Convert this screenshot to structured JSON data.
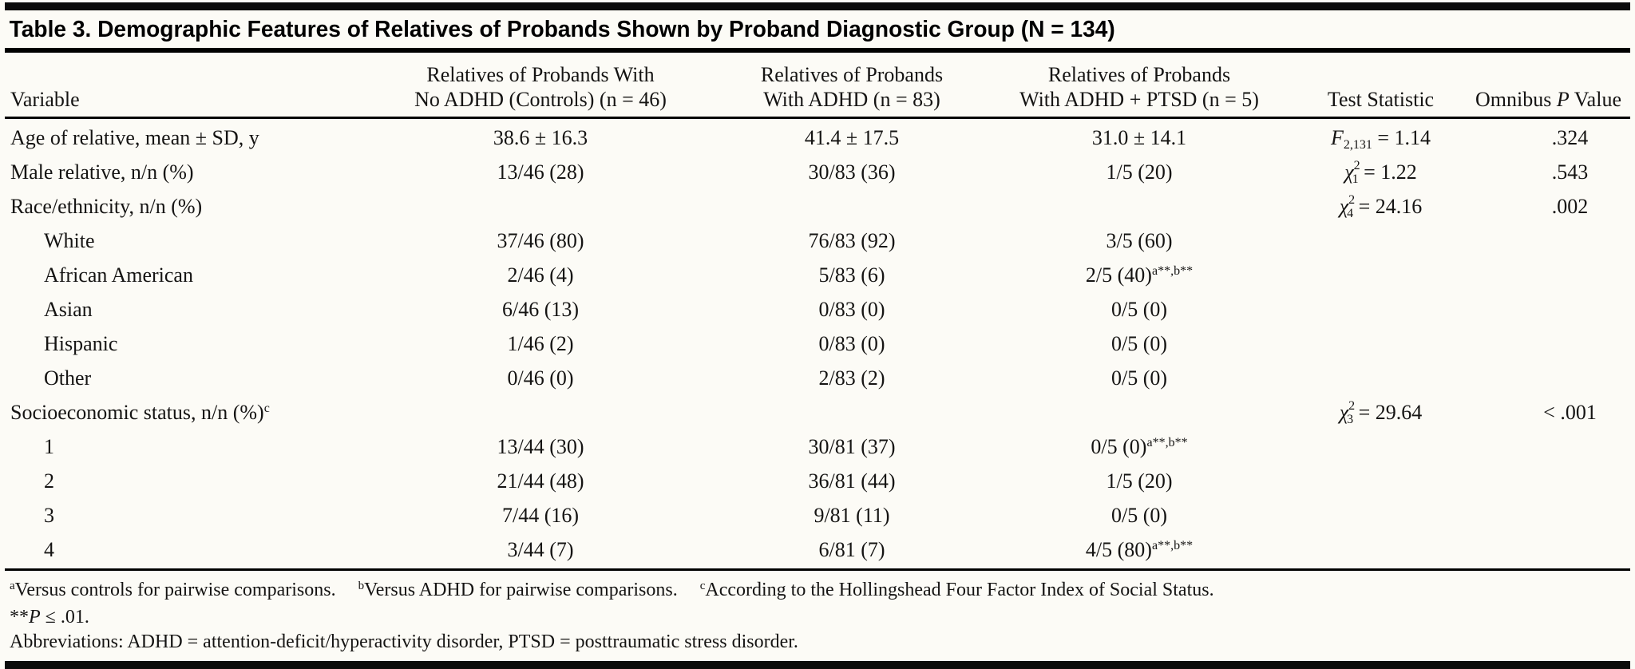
{
  "colors": {
    "background": "#fcfbf6",
    "ink": "#151413",
    "rule": "#000000"
  },
  "title": "Table 3. Demographic Features of Relatives of Probands Shown by Proband Diagnostic Group (N = 134)",
  "header": {
    "cols": [
      {
        "l2pre": "Variable"
      },
      {
        "l1": "Relatives of Probands With",
        "l2pre": "No ADHD (Controls) (n = 46)"
      },
      {
        "l1": "Relatives of Probands",
        "l2pre": "With ADHD (n = 83)"
      },
      {
        "l1": "Relatives of Probands",
        "l2pre": "With ADHD + PTSD (n = 5)"
      },
      {
        "l2pre": "Test Statistic"
      },
      {
        "l2pre": "Omnibus ",
        "l2it": "P",
        "l2post": " Value"
      }
    ]
  },
  "rows": [
    {
      "label": "Age of relative, mean ± SD, y",
      "c1": "38.6 ± 16.3",
      "c2": "41.4 ± 17.5",
      "c3": "31.0 ± 14.1",
      "stat": {
        "sym": "F",
        "sub": "2,131",
        "rest": " = 1.14"
      },
      "p": ".324"
    },
    {
      "label": "Male relative, n/n (%)",
      "c1": "13/46 (28)",
      "c2": "30/83 (36)",
      "c3": "1/5 (20)",
      "stat": {
        "sym": "χ",
        "sup": "2",
        "sub": "1",
        "rest": " = 1.22"
      },
      "p": ".543"
    },
    {
      "label": "Race/ethnicity, n/n (%)",
      "stat": {
        "sym": "χ",
        "sup": "2",
        "sub": "4",
        "rest": " = 24.16"
      },
      "p": ".002"
    },
    {
      "label": "White",
      "indent": true,
      "c1": "37/46 (80)",
      "c2": "76/83 (92)",
      "c3": "3/5 (60)"
    },
    {
      "label": "African American",
      "indent": true,
      "c1": "2/46 (4)",
      "c2": "5/83 (6)",
      "c3": "2/5 (40)",
      "c3sup": "a**,b**"
    },
    {
      "label": "Asian",
      "indent": true,
      "c1": "6/46 (13)",
      "c2": "0/83 (0)",
      "c3": "0/5 (0)"
    },
    {
      "label": "Hispanic",
      "indent": true,
      "c1": "1/46 (2)",
      "c2": "0/83 (0)",
      "c3": "0/5 (0)"
    },
    {
      "label": "Other",
      "indent": true,
      "c1": "0/46 (0)",
      "c2": "2/83 (2)",
      "c3": "0/5 (0)"
    },
    {
      "label": "Socioeconomic status, n/n (%)",
      "label_sup": "c",
      "stat": {
        "sym": "χ",
        "sup": "2",
        "sub": "3",
        "rest": " = 29.64"
      },
      "p": "< .001"
    },
    {
      "label": "1",
      "indent": true,
      "c1": "13/44 (30)",
      "c2": "30/81 (37)",
      "c3": "0/5 (0)",
      "c3sup": "a**,b**"
    },
    {
      "label": "2",
      "indent": true,
      "c1": "21/44 (48)",
      "c2": "36/81 (44)",
      "c3": "1/5 (20)"
    },
    {
      "label": "3",
      "indent": true,
      "c1": "7/44 (16)",
      "c2": "9/81 (11)",
      "c3": "0/5 (0)"
    },
    {
      "label": "4",
      "indent": true,
      "c1": "3/44 (7)",
      "c2": "6/81 (7)",
      "c3": "4/5 (80)",
      "c3sup": "a**,b**"
    }
  ],
  "footnotes": {
    "items": [
      {
        "mark": "a",
        "text": "Versus controls for pairwise comparisons."
      },
      {
        "mark": "b",
        "text": "Versus ADHD for pairwise comparisons."
      },
      {
        "mark": "c",
        "text": "According to the Hollingshead Four Factor Index of Social Status."
      }
    ],
    "significance": {
      "stars": "**",
      "p": "P",
      "rest": " ≤ .01."
    },
    "abbreviations": "Abbreviations: ADHD = attention-deficit/hyperactivity disorder, PTSD = posttraumatic stress disorder."
  }
}
